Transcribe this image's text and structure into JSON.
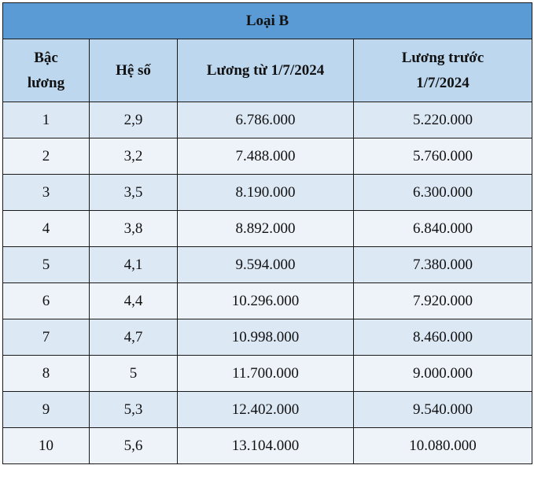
{
  "table": {
    "title": "Loại B",
    "headers": {
      "bac_luong": [
        "Bậc",
        "lương"
      ],
      "he_so": "Hệ số",
      "luong_tu": "Lương từ 1/7/2024",
      "luong_truoc": [
        "Lương trước",
        "1/7/2024"
      ]
    },
    "rows": [
      {
        "bac": "1",
        "he_so": "2,9",
        "luong_tu": "6.786.000",
        "luong_truoc": "5.220.000"
      },
      {
        "bac": "2",
        "he_so": "3,2",
        "luong_tu": "7.488.000",
        "luong_truoc": "5.760.000"
      },
      {
        "bac": "3",
        "he_so": "3,5",
        "luong_tu": "8.190.000",
        "luong_truoc": "6.300.000"
      },
      {
        "bac": "4",
        "he_so": "3,8",
        "luong_tu": "8.892.000",
        "luong_truoc": "6.840.000"
      },
      {
        "bac": "5",
        "he_so": "4,1",
        "luong_tu": "9.594.000",
        "luong_truoc": "7.380.000"
      },
      {
        "bac": "6",
        "he_so": "4,4",
        "luong_tu": "10.296.000",
        "luong_truoc": "7.920.000"
      },
      {
        "bac": "7",
        "he_so": "4,7",
        "luong_tu": "10.998.000",
        "luong_truoc": "8.460.000"
      },
      {
        "bac": "8",
        "he_so": "5",
        "luong_tu": "11.700.000",
        "luong_truoc": "9.000.000"
      },
      {
        "bac": "9",
        "he_so": "5,3",
        "luong_tu": "12.402.000",
        "luong_truoc": "9.540.000"
      },
      {
        "bac": "10",
        "he_so": "5,6",
        "luong_tu": "13.104.000",
        "luong_truoc": "10.080.000"
      }
    ]
  },
  "colors": {
    "title_bg": "#5b9bd5",
    "header_bg": "#bdd7ee",
    "row_odd_bg": "#dde8f5",
    "row_even_bg": "#eef3fa",
    "border": "#1a1a1a"
  }
}
